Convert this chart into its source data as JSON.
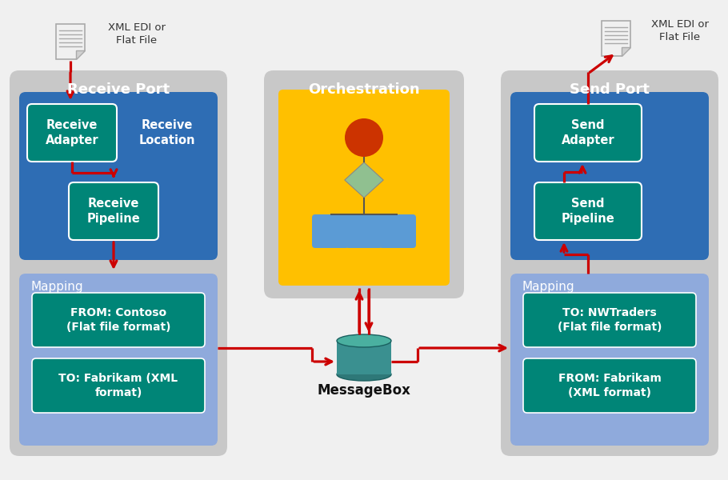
{
  "bg_color": "#f0f0f0",
  "gray_panel": "#c8c8c8",
  "blue_panel": "#2e6db4",
  "light_blue_panel": "#8faadc",
  "teal_box": "#008577",
  "yellow_panel": "#ffc000",
  "arrow_color": "#cc0000",
  "db_color_top": "#4ab0a0",
  "db_color_body": "#3a9090",
  "db_color_bot": "#2e7878",
  "orch_circle": "#cc3300",
  "orch_diamond": "#90c090",
  "orch_rect": "#5b9bd5",
  "orch_line": "#555555",
  "doc_body": "#f0f0f0",
  "doc_fold": "#d0d0d0",
  "doc_lines": "#888888",
  "title_receive": "Receive Port",
  "title_send": "Send Port",
  "title_orch": "Orchestration",
  "label_messagebox": "MessageBox",
  "label_receive_adapter": "Receive\nAdapter",
  "label_receive_location": "Receive\nLocation",
  "label_receive_pipeline": "Receive\nPipeline",
  "label_send_adapter": "Send\nAdapter",
  "label_send_pipeline": "Send\nPipeline",
  "label_mapping_left": "Mapping",
  "label_mapping_right": "Mapping",
  "label_from_contoso": "FROM: Contoso\n(Flat file format)",
  "label_to_fabrikam": "TO: Fabrikam (XML\nformat)",
  "label_to_nwtraders": "TO: NWTraders\n(Flat file format)",
  "label_from_fabrikam": "FROM: Fabrikam\n(XML format)",
  "label_xml_left": "XML EDI or\nFlat File",
  "label_xml_right": "XML EDI or\nFlat File"
}
